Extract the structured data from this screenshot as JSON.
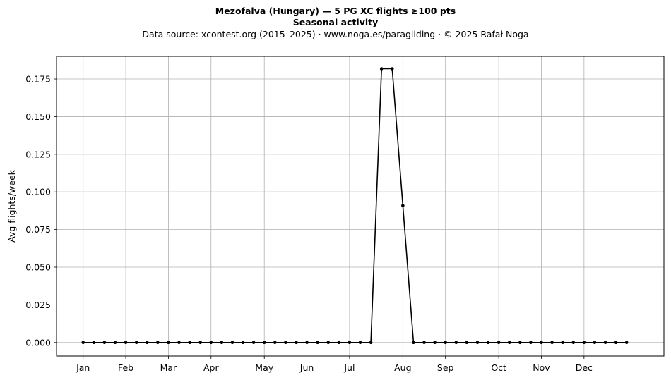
{
  "chart_data": {
    "type": "line",
    "title": "Mezofalva (Hungary)  —  5 PG XC flights ≥100 pts",
    "subtitle": "Seasonal activity",
    "source_note": "Data source: xcontest.org (2015–2025)  ·  www.noga.es/paragliding  ·  © 2025 Rafał Noga",
    "xlabel": "",
    "ylabel": "Avg flights/week",
    "grid": true,
    "xlim": [
      -2.5,
      54.5
    ],
    "ylim": [
      -0.009,
      0.19
    ],
    "x_ticks": [
      {
        "x": 0,
        "label": "Jan"
      },
      {
        "x": 4,
        "label": "Feb"
      },
      {
        "x": 8,
        "label": "Mar"
      },
      {
        "x": 12,
        "label": "Apr"
      },
      {
        "x": 17,
        "label": "May"
      },
      {
        "x": 21,
        "label": "Jun"
      },
      {
        "x": 25,
        "label": "Jul"
      },
      {
        "x": 30,
        "label": "Aug"
      },
      {
        "x": 34,
        "label": "Sep"
      },
      {
        "x": 39,
        "label": "Oct"
      },
      {
        "x": 43,
        "label": "Nov"
      },
      {
        "x": 47,
        "label": "Dec"
      }
    ],
    "y_ticks": [
      {
        "y": 0.0,
        "label": "0.000"
      },
      {
        "y": 0.025,
        "label": "0.025"
      },
      {
        "y": 0.05,
        "label": "0.050"
      },
      {
        "y": 0.075,
        "label": "0.075"
      },
      {
        "y": 0.1,
        "label": "0.100"
      },
      {
        "y": 0.125,
        "label": "0.125"
      },
      {
        "y": 0.15,
        "label": "0.150"
      },
      {
        "y": 0.175,
        "label": "0.175"
      }
    ],
    "series": [
      {
        "color": "#000000",
        "x": [
          0,
          1,
          2,
          3,
          4,
          5,
          6,
          7,
          8,
          9,
          10,
          11,
          12,
          13,
          14,
          15,
          16,
          17,
          18,
          19,
          20,
          21,
          22,
          23,
          24,
          25,
          26,
          27,
          28,
          29,
          30,
          31,
          32,
          33,
          34,
          35,
          36,
          37,
          38,
          39,
          40,
          41,
          42,
          43,
          44,
          45,
          46,
          47,
          48,
          49,
          50,
          51
        ],
        "y": [
          0,
          0,
          0,
          0,
          0,
          0,
          0,
          0,
          0,
          0,
          0,
          0,
          0,
          0,
          0,
          0,
          0,
          0,
          0,
          0,
          0,
          0,
          0,
          0,
          0,
          0,
          0,
          0,
          0.1818,
          0.1818,
          0.0909,
          0,
          0,
          0,
          0,
          0,
          0,
          0,
          0,
          0,
          0,
          0,
          0,
          0,
          0,
          0,
          0,
          0,
          0,
          0,
          0,
          0
        ]
      }
    ]
  }
}
